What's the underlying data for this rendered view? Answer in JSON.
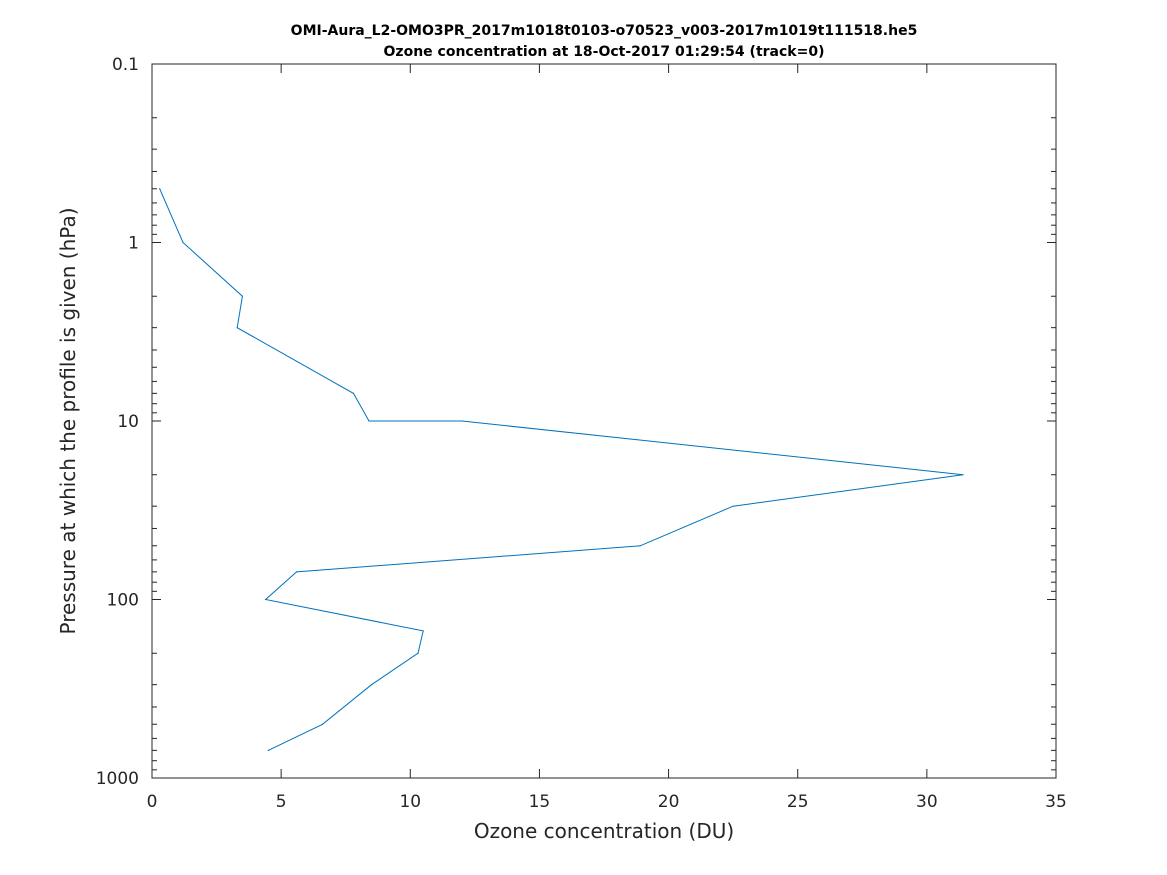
{
  "chart_data": {
    "type": "line",
    "title": "OMI-Aura_L2-OMO3PR_2017m1018t0103-o70523_v003-2017m1019t111518.he5",
    "subtitle": "Ozone concentration at 18-Oct-2017 01:29:54 (track=0)",
    "xlabel": "Ozone concentration (DU)",
    "ylabel": "Pressure at which the profile is given (hPa)",
    "xlim": [
      0,
      35
    ],
    "ylim": [
      0.1,
      1000
    ],
    "yscale": "log",
    "y_reversed": true,
    "grid": false,
    "line_color": "#0072BD",
    "x_ticks": [
      "0",
      "5",
      "10",
      "15",
      "20",
      "25",
      "30",
      "35"
    ],
    "y_ticks": [
      "0.1",
      "1",
      "10",
      "100",
      "1000"
    ],
    "series": [
      {
        "x": [
          0.3,
          1.2,
          3.5,
          3.3,
          7.8,
          8.4,
          12.0,
          31.4,
          22.5,
          18.9,
          5.6,
          4.4,
          10.5,
          10.3,
          8.5,
          6.6,
          4.5
        ],
        "y": [
          0.5,
          1.0,
          2.0,
          3.0,
          7.0,
          10.0,
          10.0,
          20.0,
          30.0,
          50.0,
          70.0,
          100.0,
          150.0,
          200.0,
          300.0,
          500.0,
          700.0
        ]
      }
    ]
  }
}
